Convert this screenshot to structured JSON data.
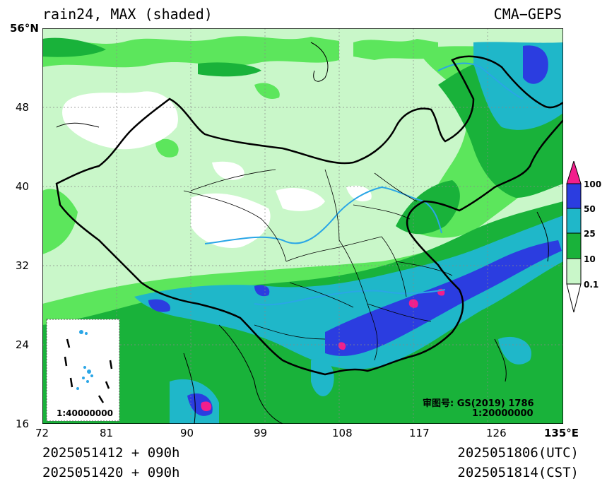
{
  "header": {
    "title": "rain24, MAX (shaded)",
    "source": "CMA−GEPS"
  },
  "axes": {
    "lat_ticks": [
      "56°N",
      "48",
      "40",
      "32",
      "24",
      "16"
    ],
    "lon_ticks": [
      "72",
      "81",
      "90",
      "99",
      "108",
      "117",
      "126",
      "135°E"
    ]
  },
  "colorbar": {
    "labels": [
      "100",
      "50",
      "25",
      "10",
      "0.1"
    ],
    "colors": [
      "#f21e8c",
      "#2b3de0",
      "#1fb7c9",
      "#19b23a",
      "#5ce65c",
      "#c9f7c9"
    ]
  },
  "inset": {
    "scale": "1:40000000"
  },
  "map_notes": {
    "review_number": "审图号: GS(2019) 1786",
    "scale": "1:20000000"
  },
  "footer": {
    "run_utc": "2025051412 + 090h",
    "run_cst": "2025051420 + 090h",
    "valid_utc": "2025051806(UTC)",
    "valid_cst": "2025051814(CST)"
  }
}
